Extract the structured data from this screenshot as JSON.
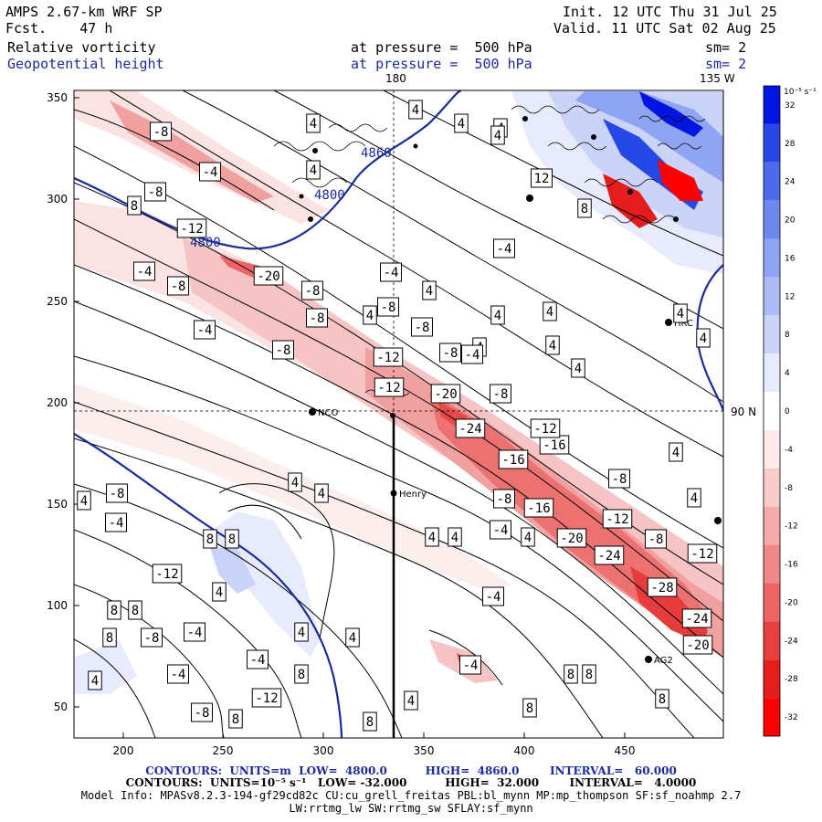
{
  "header": {
    "model": "AMPS 2.67-km WRF SP",
    "fcst": "Fcst.    47 h",
    "init": "Init. 12 UTC Thu 31 Jul 25",
    "valid": "Valid. 11 UTC Sat 02 Aug 25",
    "field1": "Relative vorticity",
    "field2": "Geopotential height",
    "press1": "at pressure =  500 hPa",
    "press2": "at pressure =  500 hPa",
    "sm1": "sm= 2",
    "sm2": "sm= 2",
    "lon_180": "180",
    "lon_135w": "135 W",
    "lat_90n": "90 N"
  },
  "axes": {
    "x_ticks": [
      "200",
      "250",
      "300",
      "350",
      "400",
      "450"
    ],
    "y_ticks": [
      "350",
      "300",
      "250",
      "200",
      "150",
      "100",
      "50"
    ]
  },
  "colorbar": {
    "unit": "10⁻⁵ s⁻¹",
    "labels": [
      "32",
      "28",
      "24",
      "20",
      "16",
      "12",
      "8",
      "4",
      "0",
      "-4",
      "-8",
      "-12",
      "-16",
      "-20",
      "-24",
      "-28",
      "-32"
    ],
    "colors": [
      "#0016e0",
      "#2747e6",
      "#4d6aea",
      "#6e88ee",
      "#8fa4f2",
      "#adbcf5",
      "#cbd3f8",
      "#e7ebfc",
      "#ffffff",
      "#fdeaea",
      "#f9cccc",
      "#f5aaaa",
      "#f18888",
      "#ec6464",
      "#e83f3f",
      "#e41c1c",
      "#ff0000"
    ]
  },
  "stations": [
    {
      "name": "NCO"
    },
    {
      "name": "Henry"
    },
    {
      "name": "HRC"
    },
    {
      "name": "AG2"
    }
  ],
  "height_labels": [
    "4800",
    "4800",
    "4860"
  ],
  "contour_labels": {
    "pos": [
      "4",
      "4",
      "4",
      "4",
      "4",
      "4",
      "4",
      "4",
      "4",
      "4",
      "4",
      "4",
      "4",
      "4",
      "4",
      "4",
      "4",
      "4",
      "4",
      "4",
      "4",
      "4",
      "4",
      "4",
      "4",
      "4",
      "4",
      "4",
      "8",
      "8",
      "8",
      "8",
      "8",
      "8",
      "8",
      "8",
      "8",
      "8",
      "8",
      "8",
      "8",
      "8",
      "12"
    ],
    "neg": [
      "-8",
      "-4",
      "-8",
      "-12",
      "-4",
      "-8",
      "-20",
      "-8",
      "-4",
      "-8",
      "-8",
      "-4",
      "-8",
      "-8",
      "-12",
      "-8",
      "-4",
      "-4",
      "-20",
      "-24",
      "-12",
      "-16",
      "-16",
      "-8",
      "-12",
      "-8",
      "-16",
      "-20",
      "-24",
      "-12",
      "-8",
      "-8",
      "-28",
      "-24",
      "-20",
      "-12",
      "-4",
      "-4",
      "-8",
      "-4",
      "-12",
      "-4",
      "-8",
      "-4",
      "-4",
      "-12",
      "-8",
      "-4"
    ]
  },
  "footer": {
    "line1": "CONTOURS:  UNITS=m  LOW=  4800.0          HIGH=  4860.0        INTERVAL=   60.000",
    "line2": "CONTOURS:  UNITS=10⁻⁵ s⁻¹   LOW= -32.000          HIGH=  32.000        INTERVAL=   4.0000",
    "line3": "Model Info: MPASv8.2.3-194-gf29cd82c CU:cu_grell_freitas PBL:bl_mynn MP:mp_thompson SF:sf_noahmp 2.7",
    "line4": "LW:rrtmg_lw SW:rrtmg_sw SFLAY:sf_mynn"
  }
}
